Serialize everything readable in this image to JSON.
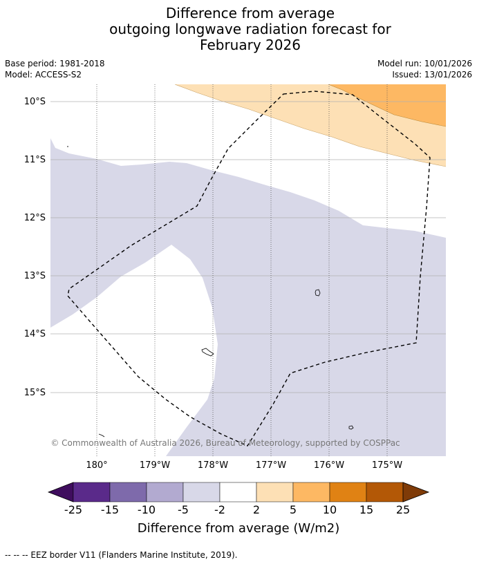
{
  "title": {
    "line1": "Difference from average",
    "line2": "outgoing longwave radiation forecast for",
    "line3": "February 2026"
  },
  "meta": {
    "base_period": "Base period: 1981-2018",
    "model": "Model: ACCESS-S2",
    "model_run": "Model run: 10/01/2026",
    "issued": "Issued: 13/01/2026"
  },
  "map": {
    "latitude_labels": [
      "10°S",
      "11°S",
      "12°S",
      "13°S",
      "14°S",
      "15°S"
    ],
    "longitude_labels": [
      "180°",
      "179°W",
      "178°W",
      "177°W",
      "176°W",
      "175°W"
    ],
    "copyright": "© Commonwealth of Australia 2026, Bureau of Meteorology, supported by COSPPac"
  },
  "colorbar": {
    "ticks": [
      "-25",
      "-15",
      "-10",
      "-5",
      "-2",
      "2",
      "5",
      "10",
      "15",
      "25"
    ],
    "colors": [
      "#3f0d5e",
      "#5a2a8a",
      "#7e6aab",
      "#b2aad0",
      "#d8d8e8",
      "#ffffff",
      "#fde0b5",
      "#fdb863",
      "#e08214",
      "#b35806",
      "#7f3b08"
    ],
    "title": "Difference from average (W/m2)"
  },
  "footnote": "--  --  -- EEZ border V11 (Flanders Marine Institute, 2019)."
}
